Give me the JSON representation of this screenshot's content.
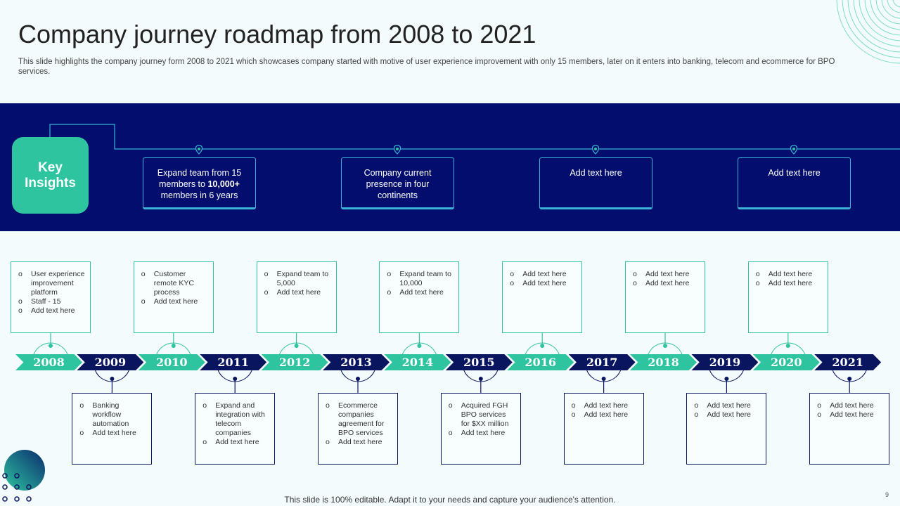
{
  "title": "Company journey roadmap from 2008 to 2021",
  "subtitle": "This slide highlights the company journey form 2008 to 2021 which showcases company started with motive of user experience improvement with only 15 members, later on it enters into banking, telecom and ecommerce for BPO services.",
  "key_insights": {
    "label": "Key Insights",
    "cards": [
      {
        "pre": "Expand team from 15 members to ",
        "bold": "10,000+",
        "post": " members in 6 years"
      },
      {
        "pre": "Company current presence in four continents",
        "bold": "",
        "post": ""
      },
      {
        "pre": "Add text here",
        "bold": "",
        "post": ""
      },
      {
        "pre": "Add text here",
        "bold": "",
        "post": ""
      }
    ]
  },
  "colors": {
    "navy": "#020d6d",
    "teal": "#2ec4a0",
    "timeline_navy": "#0a1560"
  },
  "timeline": [
    {
      "year": "2008",
      "items": [
        "User experience improvement platform",
        "Staff - 15",
        "Add text here"
      ]
    },
    {
      "year": "2009",
      "items": [
        "Banking workflow automation",
        "Add text here"
      ]
    },
    {
      "year": "2010",
      "items": [
        "Customer remote KYC process",
        "Add text here"
      ]
    },
    {
      "year": "2011",
      "items": [
        "Expand and integration with telecom companies",
        "Add text here"
      ]
    },
    {
      "year": "2012",
      "items": [
        "Expand team to 5,000",
        "Add text here"
      ]
    },
    {
      "year": "2013",
      "items": [
        "Ecommerce companies agreement for BPO services",
        "Add text here"
      ]
    },
    {
      "year": "2014",
      "items": [
        "Expand team to 10,000",
        "Add text here"
      ]
    },
    {
      "year": "2015",
      "items": [
        "Acquired FGH BPO services for $XX million",
        "Add text here"
      ]
    },
    {
      "year": "2016",
      "items": [
        "Add text here",
        "Add text here"
      ]
    },
    {
      "year": "2017",
      "items": [
        "Add text here",
        "Add text here"
      ]
    },
    {
      "year": "2018",
      "items": [
        "Add text here",
        "Add text here"
      ]
    },
    {
      "year": "2019",
      "items": [
        "Add text here",
        "Add text here"
      ]
    },
    {
      "year": "2020",
      "items": [
        "Add text here",
        "Add text here"
      ]
    },
    {
      "year": "2021",
      "items": [
        "Add text here",
        "Add text here"
      ]
    }
  ],
  "footer": "This slide is 100% editable. Adapt it to your needs and capture your audience's attention.",
  "page_number": "9"
}
